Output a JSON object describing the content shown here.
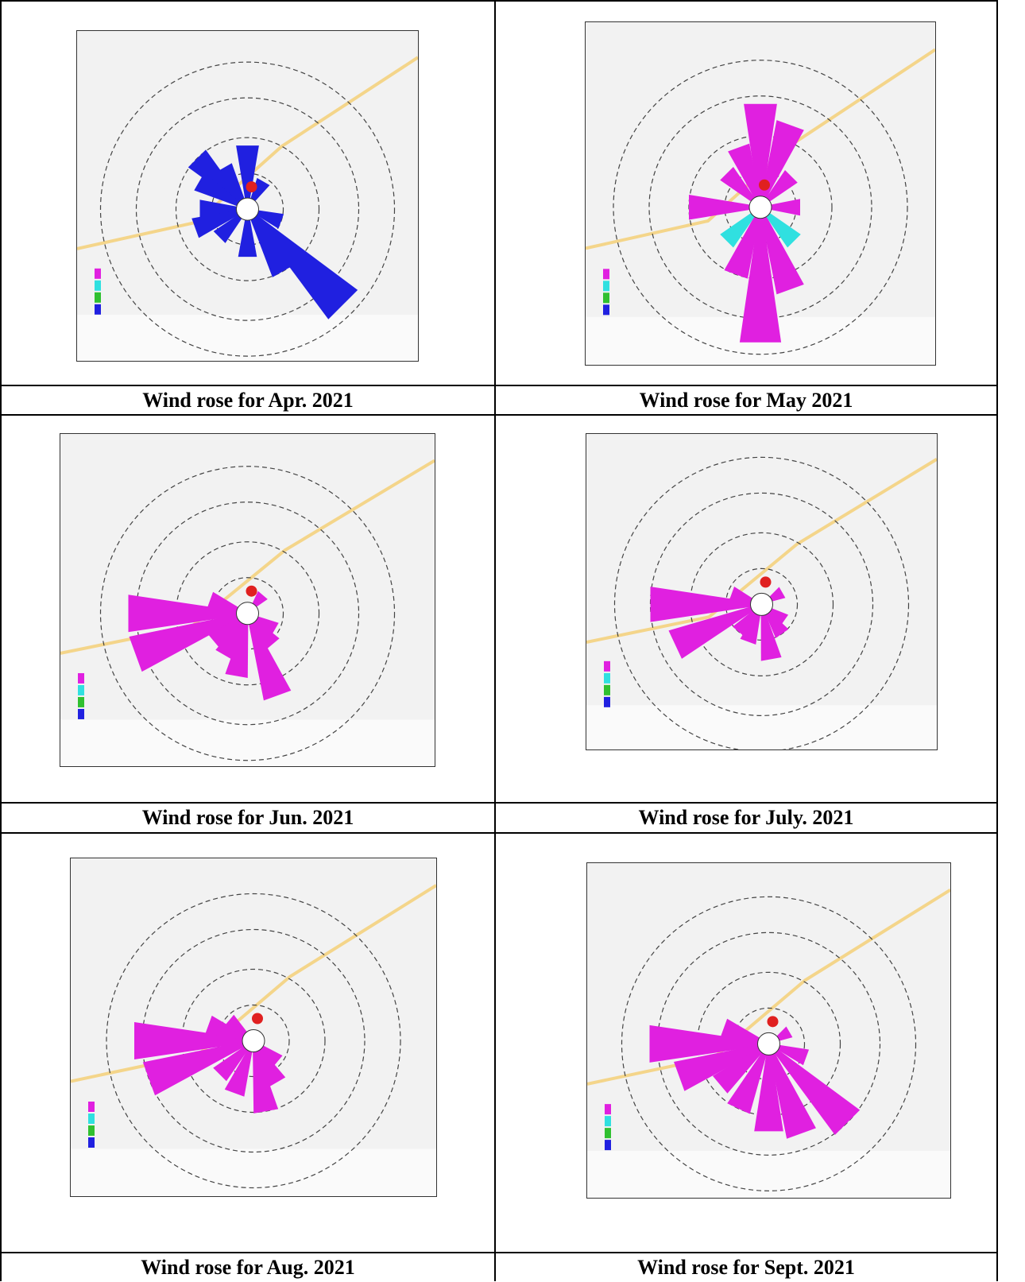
{
  "table": {
    "rows": [
      [
        "Wind rose for Apr. 2021",
        "Wind rose for May 2021"
      ],
      [
        "Wind rose for Jun. 2021",
        "Wind rose for July. 2021"
      ],
      [
        "Wind rose for Aug. 2021",
        "Wind rose for Sept. 2021"
      ]
    ]
  }
}
